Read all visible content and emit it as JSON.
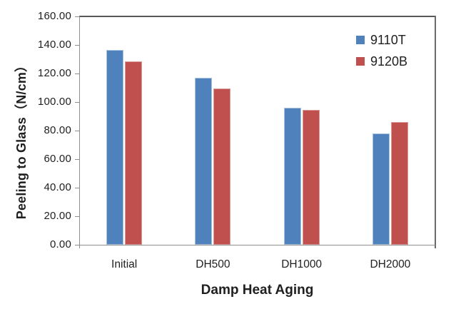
{
  "chart_data": {
    "type": "bar",
    "title": "",
    "categories": [
      "Initial",
      "DH500",
      "DH1000",
      "DH2000"
    ],
    "series": [
      {
        "name": "9110T",
        "color": "#4F81BD",
        "border_color": "#A8C2DF",
        "values": [
          136.5,
          117.0,
          96.0,
          78.0
        ]
      },
      {
        "name": "9120B",
        "color": "#C0504D",
        "border_color": "#DA9B99",
        "values": [
          128.5,
          109.5,
          94.5,
          86.0
        ]
      }
    ],
    "xlabel": "Damp Heat Aging",
    "ylabel": "Peeling to Glass（N/cm）",
    "ylim": [
      0,
      160
    ],
    "ytick_step": 20,
    "ytick_labels": [
      "160.00",
      "140.00",
      "120.00",
      "100.00",
      "80.00",
      "60.00",
      "40.00",
      "20.00",
      "0.00"
    ],
    "grid": false,
    "legend_position": "top-right",
    "axis_color": "#8e8e8e",
    "text_color": "#1f1f1f"
  }
}
